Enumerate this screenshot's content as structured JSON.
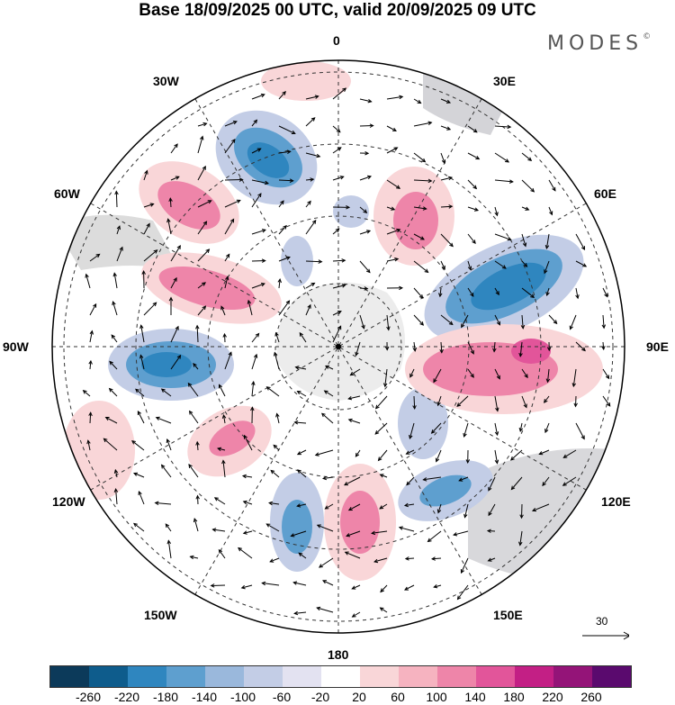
{
  "title": "Base 18/09/2025 00 UTC, valid 20/09/2025 09 UTC",
  "brand": "MODES",
  "brand_mark": "©",
  "longitude_labels": {
    "top": "0",
    "top_left": "30W",
    "top_right": "30E",
    "upper_left": "60W",
    "upper_right": "60E",
    "left": "90W",
    "right": "90E",
    "lower_left": "120W",
    "lower_right": "120E",
    "bottom_left": "150W",
    "bottom_right": "150E",
    "bottom": "180"
  },
  "reference_vector": "30",
  "colorbar": {
    "ticks": [
      "-260",
      "-220",
      "-180",
      "-140",
      "-100",
      "-60",
      "-20",
      "20",
      "60",
      "100",
      "140",
      "180",
      "220",
      "260"
    ],
    "colors": [
      "#0c3a5a",
      "#0e5c8c",
      "#2f86bf",
      "#5e9fcf",
      "#9ab8dc",
      "#c3cde6",
      "#e3e2f1",
      "#ffffff",
      "#f9d6d8",
      "#f6b3c0",
      "#ee85a9",
      "#e2559a",
      "#c31f85",
      "#941478",
      "#5a0a6e"
    ]
  }
}
